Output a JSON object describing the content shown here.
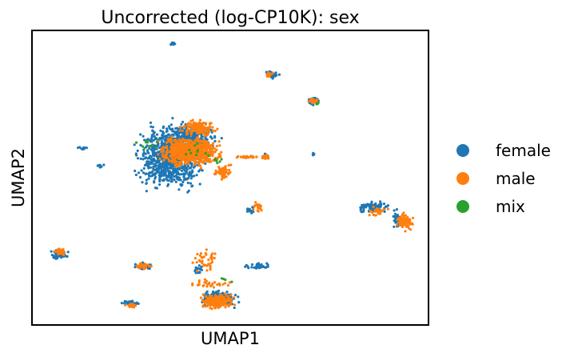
{
  "chart_data": {
    "type": "scatter",
    "title": "Uncorrected (log-CP10K): sex",
    "xlabel": "UMAP1",
    "ylabel": "UMAP2",
    "xlim": [
      0,
      100
    ],
    "ylim": [
      0,
      100
    ],
    "grid": false,
    "ticks": false,
    "legend": "right",
    "series": [
      {
        "name": "female",
        "color": "#1f77b4",
        "clusters": [
          {
            "cx": 35,
            "cy": 57,
            "rx": 10,
            "ry": 13,
            "n": 900
          },
          {
            "cx": 40,
            "cy": 64,
            "rx": 8,
            "ry": 5,
            "n": 250
          },
          {
            "cx": 35.5,
            "cy": 95.5,
            "rx": 0.8,
            "ry": 0.8,
            "n": 14
          },
          {
            "cx": 60.5,
            "cy": 85,
            "rx": 2,
            "ry": 1.5,
            "n": 40
          },
          {
            "cx": 71,
            "cy": 76,
            "rx": 2.2,
            "ry": 1.8,
            "n": 40
          },
          {
            "cx": 59,
            "cy": 57.5,
            "rx": 1,
            "ry": 1,
            "n": 12
          },
          {
            "cx": 71,
            "cy": 58,
            "rx": 0.6,
            "ry": 0.6,
            "n": 6
          },
          {
            "cx": 86,
            "cy": 40,
            "rx": 5,
            "ry": 2.5,
            "n": 80
          },
          {
            "cx": 92,
            "cy": 36,
            "rx": 2,
            "ry": 4,
            "n": 40
          },
          {
            "cx": 7,
            "cy": 24,
            "rx": 3,
            "ry": 2,
            "n": 50
          },
          {
            "cx": 28,
            "cy": 20,
            "rx": 3,
            "ry": 1.5,
            "n": 40
          },
          {
            "cx": 47,
            "cy": 9,
            "rx": 5,
            "ry": 3,
            "n": 220
          },
          {
            "cx": 25,
            "cy": 7.5,
            "rx": 3,
            "ry": 1,
            "n": 25
          },
          {
            "cx": 57,
            "cy": 20,
            "rx": 4,
            "ry": 1,
            "n": 30
          },
          {
            "cx": 17,
            "cy": 54,
            "rx": 1.2,
            "ry": 0.8,
            "n": 12
          },
          {
            "cx": 13,
            "cy": 60,
            "rx": 1.5,
            "ry": 0.8,
            "n": 12
          },
          {
            "cx": 42,
            "cy": 19,
            "rx": 1.5,
            "ry": 2,
            "n": 20
          },
          {
            "cx": 55,
            "cy": 39,
            "rx": 1.5,
            "ry": 2,
            "n": 15
          }
        ]
      },
      {
        "name": "male",
        "color": "#ff7f0e",
        "clusters": [
          {
            "cx": 40,
            "cy": 59,
            "rx": 9,
            "ry": 6,
            "n": 750
          },
          {
            "cx": 42,
            "cy": 67,
            "rx": 5,
            "ry": 3,
            "n": 150
          },
          {
            "cx": 59,
            "cy": 57,
            "rx": 1.5,
            "ry": 1,
            "n": 20
          },
          {
            "cx": 48,
            "cy": 52,
            "rx": 3,
            "ry": 3,
            "n": 60
          },
          {
            "cx": 71,
            "cy": 76,
            "rx": 1.5,
            "ry": 1.2,
            "n": 30
          },
          {
            "cx": 60,
            "cy": 85,
            "rx": 1.5,
            "ry": 1,
            "n": 15
          },
          {
            "cx": 94,
            "cy": 35,
            "rx": 2.5,
            "ry": 3.5,
            "n": 80
          },
          {
            "cx": 87,
            "cy": 38.5,
            "rx": 3,
            "ry": 2,
            "n": 30
          },
          {
            "cx": 47,
            "cy": 8,
            "rx": 5,
            "ry": 3,
            "n": 230
          },
          {
            "cx": 7,
            "cy": 25,
            "rx": 2,
            "ry": 1.5,
            "n": 30
          },
          {
            "cx": 28,
            "cy": 20,
            "rx": 2.5,
            "ry": 1.2,
            "n": 30
          },
          {
            "cx": 25,
            "cy": 6.5,
            "rx": 2,
            "ry": 1,
            "n": 15
          },
          {
            "cx": 44,
            "cy": 22,
            "rx": 4,
            "ry": 5,
            "n": 40
          },
          {
            "cx": 45,
            "cy": 14,
            "rx": 8,
            "ry": 2,
            "n": 30
          },
          {
            "cx": 55,
            "cy": 57,
            "rx": 4,
            "ry": 0.8,
            "n": 25
          },
          {
            "cx": 57,
            "cy": 40,
            "rx": 2,
            "ry": 2.5,
            "n": 20
          }
        ]
      },
      {
        "name": "mix",
        "color": "#2ca02c",
        "clusters": [
          {
            "cx": 29,
            "cy": 62,
            "rx": 3,
            "ry": 3,
            "n": 10
          },
          {
            "cx": 47,
            "cy": 56,
            "rx": 2,
            "ry": 2,
            "n": 6
          },
          {
            "cx": 49,
            "cy": 16,
            "rx": 4,
            "ry": 3,
            "n": 4
          },
          {
            "cx": 72,
            "cy": 75,
            "rx": 1,
            "ry": 1,
            "n": 3
          },
          {
            "cx": 41,
            "cy": 58,
            "rx": 6,
            "ry": 5,
            "n": 10
          }
        ]
      }
    ]
  }
}
